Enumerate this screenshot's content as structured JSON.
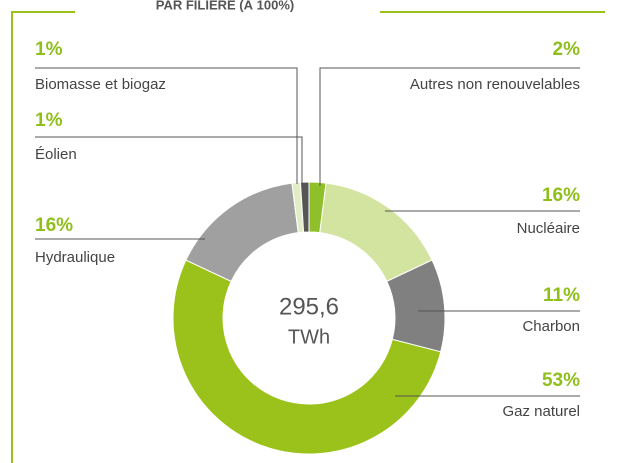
{
  "chart_data": {
    "type": "pie",
    "donut": true,
    "title": "PAR FILIÈRE (À 100%)",
    "center_value": "295,6",
    "center_unit": "TWh",
    "categories": [
      "Autres non renouvelables",
      "Nucléaire",
      "Charbon",
      "Gaz naturel",
      "Hydraulique",
      "Éolien",
      "Biomasse et biogaz"
    ],
    "values": [
      2,
      16,
      11,
      53,
      16,
      1,
      1
    ],
    "value_labels": [
      "2%",
      "16%",
      "11%",
      "53%",
      "16%",
      "1%",
      "1%"
    ],
    "colors": [
      "#8fbf2a",
      "#d3e3a0",
      "#808080",
      "#9bc21a",
      "#a0a0a0",
      "#e3edc5",
      "#555555"
    ]
  }
}
